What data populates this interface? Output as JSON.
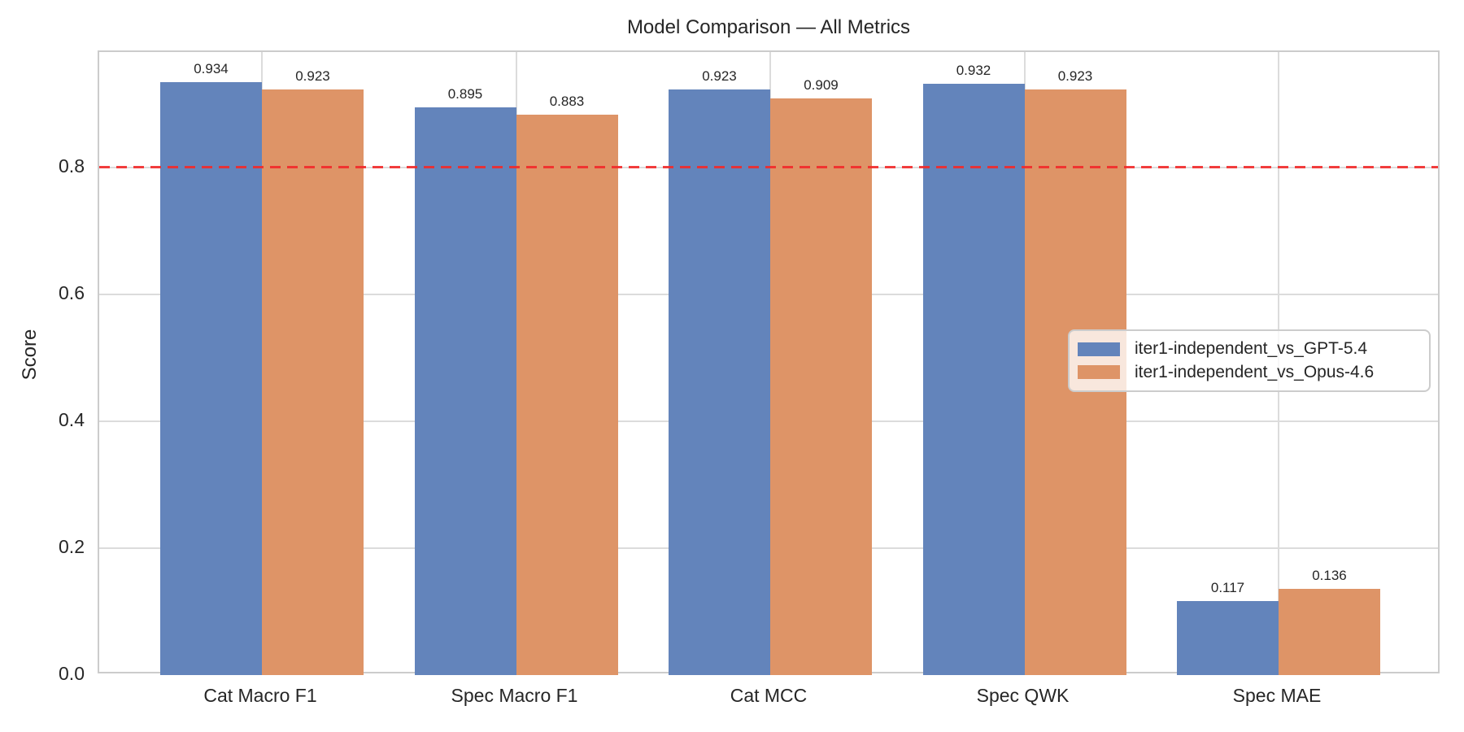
{
  "chart_data": {
    "type": "bar",
    "title": "Model Comparison — All Metrics",
    "xlabel": "",
    "ylabel": "Score",
    "categories": [
      "Cat Macro F1",
      "Spec Macro F1",
      "Cat MCC",
      "Spec QWK",
      "Spec MAE"
    ],
    "series": [
      {
        "name": "iter1-independent_vs_GPT-5.4",
        "color": "#6384BB",
        "values": [
          0.934,
          0.895,
          0.923,
          0.932,
          0.117
        ]
      },
      {
        "name": "iter1-independent_vs_Opus-4.6",
        "color": "#DE9467",
        "values": [
          0.923,
          0.883,
          0.909,
          0.923,
          0.136
        ]
      }
    ],
    "bar_value_labels": [
      [
        "0.934",
        "0.895",
        "0.923",
        "0.932",
        "0.117"
      ],
      [
        "0.923",
        "0.883",
        "0.909",
        "0.923",
        "0.136"
      ]
    ],
    "yticks": [
      "0.0",
      "0.2",
      "0.4",
      "0.6",
      "0.8"
    ],
    "ytick_values": [
      0.0,
      0.2,
      0.4,
      0.6,
      0.8
    ],
    "ylim": [
      0,
      0.982
    ],
    "reference_line": {
      "value": 0.8,
      "color": "#f22a2a",
      "style": "dashed"
    },
    "grid": true,
    "legend_position": "center right"
  }
}
